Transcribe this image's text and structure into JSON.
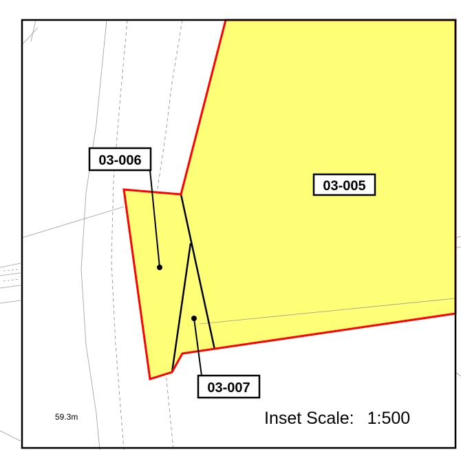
{
  "map": {
    "parcels": [
      {
        "id": "03-005",
        "fill": "#ffff77"
      },
      {
        "id": "03-006",
        "fill": "#ffff77"
      },
      {
        "id": "03-007",
        "fill": "#ffff77"
      }
    ],
    "boundary_color": "#ff0000",
    "spot_height": "59.3m",
    "inset_scale": {
      "label": "Inset Scale:",
      "value": "1:500"
    }
  }
}
